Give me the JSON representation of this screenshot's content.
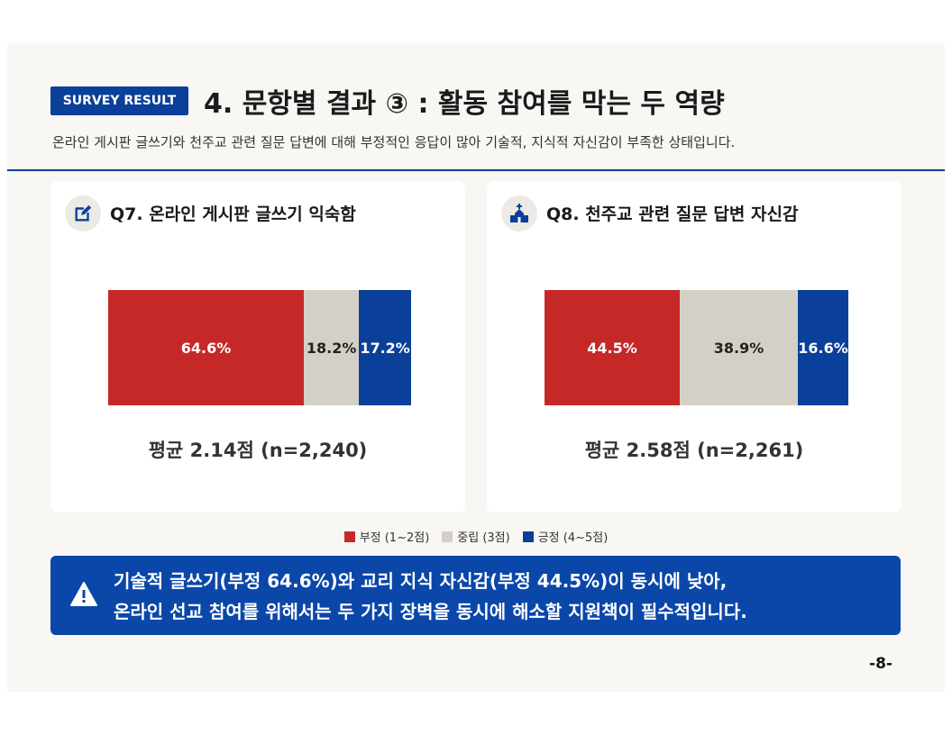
{
  "header": {
    "badge": "SURVEY RESULT",
    "title": "4. 문항별 결과 ③ : 활동 참여를 막는 두 역량",
    "subtitle": "온라인 게시판 글쓰기와 천주교 관련 질문 답변에 대해 부정적인 응답이 많아 기술적, 지식적 자신감이 부족한 상태입니다."
  },
  "cards": [
    {
      "icon": "edit-icon",
      "title": "Q7. 온라인 게시판 글쓰기 익숙함",
      "average": "평균 2.14점 (n=2,240)",
      "labels": [
        "64.6%",
        "18.2%",
        "17.2%"
      ]
    },
    {
      "icon": "church-icon",
      "title": "Q8. 천주교 관련 질문 답변 자신감",
      "average": "평균 2.58점 (n=2,261)",
      "labels": [
        "44.5%",
        "38.9%",
        "16.6%"
      ]
    }
  ],
  "legend": [
    {
      "label": "부정 (1~2점)",
      "color": "#c62828"
    },
    {
      "label": "중립 (3점)",
      "color": "#d5d0c7"
    },
    {
      "label": "긍정 (4~5점)",
      "color": "#0a3f9a"
    }
  ],
  "alert": {
    "icon": "warning-icon",
    "line1": "기술적 글쓰기(부정 64.6%)와 교리 지식 자신감(부정 44.5%)이 동시에 낮아,",
    "line2": "온라인 선교 참여를 위해서는 두 가지 장벽을 동시에 해소할 지원책이 필수적입니다."
  },
  "page_number": "-8-",
  "chart_data": [
    {
      "type": "bar",
      "stacked": true,
      "orientation": "horizontal",
      "title": "Q7. 온라인 게시판 글쓰기 익숙함",
      "series": [
        {
          "name": "부정 (1~2점)",
          "values": [
            64.6
          ]
        },
        {
          "name": "중립 (3점)",
          "values": [
            18.2
          ]
        },
        {
          "name": "긍정 (4~5점)",
          "values": [
            17.2
          ]
        }
      ]
    },
    {
      "type": "bar",
      "stacked": true,
      "orientation": "horizontal",
      "title": "Q8. 천주교 관련 질문 답변 자신감",
      "series": [
        {
          "name": "부정 (1~2점)",
          "values": [
            44.5
          ]
        },
        {
          "name": "중립 (3점)",
          "values": [
            38.9
          ]
        },
        {
          "name": "긍정 (4~5점)",
          "values": [
            16.6
          ]
        }
      ]
    }
  ]
}
